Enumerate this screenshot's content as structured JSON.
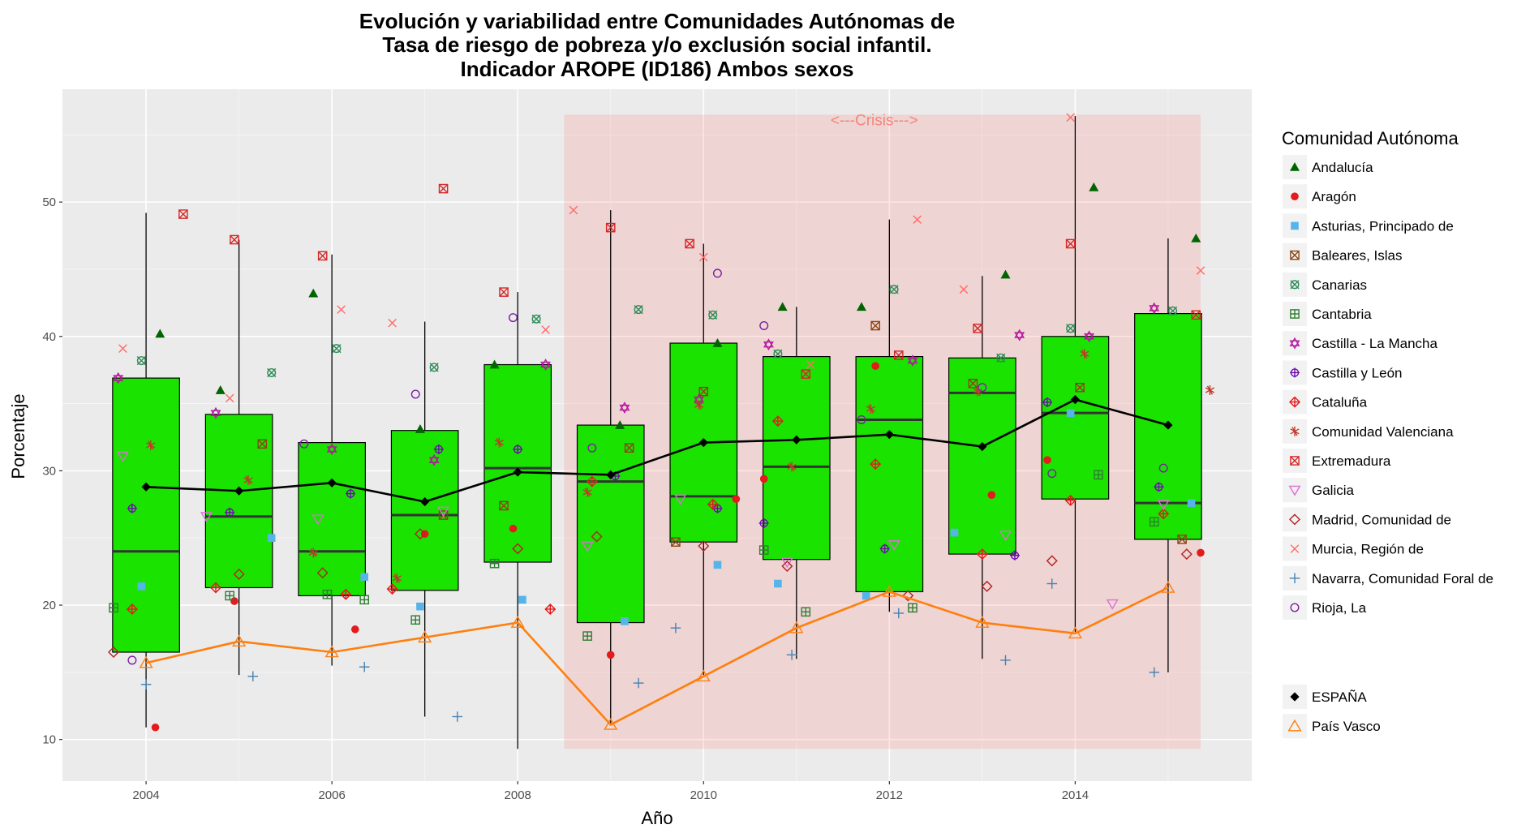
{
  "chart_data": {
    "type": "boxplot",
    "title_lines": [
      "Evolución y variabilidad entre Comunidades Autónomas de",
      "Tasa de riesgo de pobreza y/o exclusión social infantil.",
      "Indicador AROPE (ID186) Ambos sexos"
    ],
    "xlabel": "Año",
    "ylabel": "Porcentaje",
    "xlim": [
      2003.1,
      2015.9
    ],
    "ylim": [
      6.9,
      58.4
    ],
    "x_ticks": [
      2004,
      2006,
      2008,
      2010,
      2012,
      2014
    ],
    "y_ticks": [
      10,
      20,
      30,
      40,
      50
    ],
    "grid": true,
    "panel_background": "#ebebeb",
    "box_fill": "#1ae300",
    "crisis": {
      "label": "<---Crisis--->",
      "x_range": [
        2008.5,
        2015.35
      ],
      "y_range": [
        9.3,
        56.5
      ],
      "color": "#f8766d"
    },
    "legend_title": "Comunidad Autónoma",
    "legend_position": "right",
    "boxes": [
      {
        "year": 2004,
        "q1": 16.5,
        "median": 24.0,
        "q3": 36.9,
        "low": 10.9,
        "high": 49.2
      },
      {
        "year": 2005,
        "q1": 21.3,
        "median": 26.6,
        "q3": 34.2,
        "low": 14.8,
        "high": 47.2
      },
      {
        "year": 2006,
        "q1": 20.7,
        "median": 24.0,
        "q3": 32.1,
        "low": 15.5,
        "high": 46.1
      },
      {
        "year": 2007,
        "q1": 21.1,
        "median": 26.7,
        "q3": 33.0,
        "low": 11.7,
        "high": 41.1
      },
      {
        "year": 2008,
        "q1": 23.2,
        "median": 30.2,
        "q3": 37.9,
        "low": 9.3,
        "high": 43.3
      },
      {
        "year": 2009,
        "q1": 18.7,
        "median": 29.2,
        "q3": 33.4,
        "low": 11.1,
        "high": 49.4
      },
      {
        "year": 2010,
        "q1": 24.7,
        "median": 28.1,
        "q3": 39.5,
        "low": 14.8,
        "high": 46.9
      },
      {
        "year": 2011,
        "q1": 23.4,
        "median": 30.3,
        "q3": 38.5,
        "low": 16.0,
        "high": 42.2
      },
      {
        "year": 2012,
        "q1": 21.0,
        "median": 33.8,
        "q3": 38.5,
        "low": 19.5,
        "high": 48.7
      },
      {
        "year": 2013,
        "q1": 23.8,
        "median": 35.8,
        "q3": 38.4,
        "low": 16.0,
        "high": 44.5
      },
      {
        "year": 2014,
        "q1": 27.9,
        "median": 34.3,
        "q3": 40.0,
        "low": 18.0,
        "high": 56.4
      },
      {
        "year": 2015,
        "q1": 24.9,
        "median": 27.6,
        "q3": 41.7,
        "low": 15.0,
        "high": 47.3
      }
    ],
    "lines": [
      {
        "name": "ESPAÑA",
        "color": "#000000",
        "shape": "diamond",
        "x": [
          2004,
          2005,
          2006,
          2007,
          2008,
          2009,
          2010,
          2011,
          2012,
          2013,
          2014,
          2015
        ],
        "y": [
          28.8,
          28.5,
          29.1,
          27.7,
          29.9,
          29.7,
          32.1,
          32.3,
          32.7,
          31.8,
          35.3,
          33.4
        ]
      },
      {
        "name": "País Vasco",
        "color": "#ff7f0e",
        "shape": "triangle-open",
        "x": [
          2004,
          2005,
          2006,
          2007,
          2008,
          2009,
          2010,
          2011,
          2012,
          2013,
          2014,
          2015
        ],
        "y": [
          15.7,
          17.3,
          16.5,
          17.6,
          18.7,
          11.1,
          14.7,
          18.3,
          21.0,
          18.7,
          17.9,
          21.3
        ]
      }
    ],
    "series": [
      {
        "name": "Andalucía",
        "color": "#006400",
        "shape": "triangle",
        "x": [
          2004.15,
          2004.8,
          2005.8,
          2006.95,
          2007.75,
          2009.1,
          2010.15,
          2010.85,
          2011.7,
          2013.25,
          2014.2,
          2015.3
        ],
        "y": [
          40.2,
          36.0,
          43.2,
          33.1,
          37.9,
          33.4,
          39.5,
          42.2,
          42.2,
          44.6,
          51.1,
          47.3
        ]
      },
      {
        "name": "Aragón",
        "color": "#e41a1c",
        "shape": "circle",
        "x": [
          2004.1,
          2004.95,
          2006.25,
          2007.0,
          2007.95,
          2009.0,
          2010.35,
          2010.65,
          2011.85,
          2013.1,
          2013.7,
          2015.35
        ],
        "y": [
          10.9,
          20.3,
          18.2,
          25.3,
          25.7,
          16.3,
          27.9,
          29.4,
          37.8,
          28.2,
          30.8,
          23.9
        ]
      },
      {
        "name": "Asturias, Principado de",
        "color": "#56b4e9",
        "shape": "square",
        "x": [
          2003.95,
          2005.35,
          2006.35,
          2006.95,
          2008.05,
          2009.15,
          2010.15,
          2010.8,
          2011.75,
          2012.7,
          2013.95,
          2015.25
        ],
        "y": [
          21.4,
          25.0,
          22.1,
          19.9,
          20.4,
          18.8,
          23.0,
          21.6,
          20.7,
          25.4,
          34.3,
          27.6
        ]
      },
      {
        "name": "Baleares, Islas",
        "color": "#8b4513",
        "shape": "square-x",
        "x": [
          2005.25,
          2007.2,
          2007.85,
          2009.2,
          2009.7,
          2010.0,
          2011.85,
          2012.9,
          2014.05,
          2015.15
        ],
        "y": [
          32.0,
          26.7,
          27.4,
          31.7,
          24.7,
          35.9,
          40.8,
          36.5,
          36.2,
          24.9
        ]
      },
      {
        "name": "Canarias",
        "color": "#2e8b57",
        "shape": "circle-x",
        "x": [
          2003.95,
          2005.35,
          2006.05,
          2007.1,
          2008.2,
          2009.3,
          2010.1,
          2010.8,
          2012.05,
          2013.2,
          2013.95,
          2015.05
        ],
        "y": [
          38.2,
          37.3,
          39.1,
          37.7,
          41.3,
          42.0,
          41.6,
          38.7,
          43.5,
          38.4,
          40.6,
          41.9
        ]
      },
      {
        "name": "Cantabria",
        "color": "#2e7d32",
        "shape": "square-plus",
        "x": [
          2003.65,
          2004.9,
          2005.95,
          2006.35,
          2006.9,
          2007.75,
          2008.75,
          2010.65,
          2011.1,
          2012.25,
          2014.25,
          2014.85
        ],
        "y": [
          19.8,
          20.7,
          20.8,
          20.4,
          18.9,
          23.1,
          17.7,
          24.1,
          19.5,
          19.8,
          29.7,
          26.2
        ]
      },
      {
        "name": "Castilla - La Mancha",
        "color": "#b5179e",
        "shape": "star-of-david",
        "x": [
          2003.7,
          2004.75,
          2006.0,
          2007.1,
          2008.3,
          2009.15,
          2009.95,
          2010.7,
          2012.25,
          2013.4,
          2014.15,
          2014.85
        ],
        "y": [
          36.9,
          34.3,
          31.6,
          30.8,
          37.9,
          34.7,
          35.3,
          39.4,
          38.2,
          40.1,
          40.0,
          42.1
        ]
      },
      {
        "name": "Castilla y León",
        "color": "#6a0dad",
        "shape": "circle-plus",
        "x": [
          2003.85,
          2004.9,
          2006.2,
          2007.15,
          2008.0,
          2009.05,
          2010.15,
          2010.65,
          2011.95,
          2013.35,
          2013.7,
          2014.9
        ],
        "y": [
          27.2,
          26.9,
          28.3,
          31.6,
          31.6,
          29.6,
          27.2,
          26.1,
          24.2,
          23.7,
          35.1,
          28.8
        ]
      },
      {
        "name": "Cataluña",
        "color": "#e41a1c",
        "shape": "diamond-plus",
        "x": [
          2003.85,
          2004.75,
          2006.15,
          2006.65,
          2008.35,
          2008.8,
          2010.1,
          2010.8,
          2011.85,
          2013.0,
          2013.95,
          2014.95
        ],
        "y": [
          19.7,
          21.3,
          20.8,
          21.2,
          19.7,
          29.2,
          27.5,
          33.7,
          30.5,
          23.8,
          27.8,
          26.8
        ]
      },
      {
        "name": "Comunidad Valenciana",
        "color": "#c0392b",
        "shape": "asterisk",
        "x": [
          2004.05,
          2005.1,
          2005.8,
          2006.7,
          2007.8,
          2008.75,
          2009.95,
          2010.95,
          2011.8,
          2012.95,
          2014.1,
          2015.45
        ],
        "y": [
          31.9,
          29.3,
          23.9,
          22.0,
          32.1,
          28.4,
          34.9,
          30.3,
          34.6,
          35.9,
          38.7,
          36.0
        ]
      },
      {
        "name": "Extremadura",
        "color": "#d62728",
        "shape": "square-x",
        "x": [
          2004.4,
          2004.95,
          2005.9,
          2007.2,
          2007.85,
          2009.0,
          2009.85,
          2011.1,
          2012.1,
          2012.95,
          2013.95,
          2015.3
        ],
        "y": [
          49.1,
          47.2,
          46.0,
          51.0,
          43.3,
          48.1,
          46.9,
          37.2,
          38.6,
          40.6,
          46.9,
          41.6
        ]
      },
      {
        "name": "Galicia",
        "color": "#da70d6",
        "shape": "triangle-down-open",
        "x": [
          2003.75,
          2004.65,
          2005.85,
          2007.2,
          2008.75,
          2009.75,
          2010.9,
          2012.05,
          2013.25,
          2014.4,
          2014.95
        ],
        "y": [
          31.1,
          26.6,
          26.4,
          27.0,
          24.4,
          27.9,
          23.2,
          24.5,
          25.2,
          20.1,
          27.5
        ]
      },
      {
        "name": "Madrid, Comunidad de",
        "color": "#b22222",
        "shape": "diamond-open",
        "x": [
          2003.65,
          2005.0,
          2005.9,
          2006.95,
          2008.0,
          2008.85,
          2010.0,
          2010.9,
          2012.2,
          2013.05,
          2013.75,
          2015.2
        ],
        "y": [
          16.5,
          22.3,
          22.4,
          25.3,
          24.2,
          25.1,
          24.4,
          22.9,
          20.7,
          21.4,
          23.3,
          23.8
        ]
      },
      {
        "name": "Murcia, Región de",
        "color": "#ff6b6b",
        "shape": "cross-x",
        "x": [
          2003.75,
          2004.9,
          2006.1,
          2006.65,
          2008.3,
          2008.6,
          2010.0,
          2011.15,
          2012.3,
          2012.8,
          2013.95,
          2015.35
        ],
        "y": [
          39.1,
          35.4,
          42.0,
          41.0,
          40.5,
          49.4,
          45.9,
          37.9,
          48.7,
          43.5,
          56.3,
          44.9
        ]
      },
      {
        "name": "Navarra, Comunidad Foral de",
        "color": "#4682b4",
        "shape": "plus",
        "x": [
          2004.0,
          2005.15,
          2006.35,
          2007.35,
          2009.3,
          2009.7,
          2010.95,
          2012.1,
          2013.25,
          2013.75,
          2014.85
        ],
        "y": [
          14.1,
          14.7,
          15.4,
          11.7,
          14.2,
          18.3,
          16.3,
          19.4,
          15.9,
          21.6,
          15.0
        ]
      },
      {
        "name": "Rioja, La",
        "color": "#7b1fa2",
        "shape": "circle-open",
        "x": [
          2003.85,
          2005.7,
          2006.9,
          2007.95,
          2008.8,
          2010.15,
          2010.65,
          2011.7,
          2013.0,
          2013.75,
          2014.95
        ],
        "y": [
          15.9,
          32.0,
          35.7,
          41.4,
          31.7,
          44.7,
          40.8,
          33.8,
          36.2,
          29.8,
          30.2
        ]
      }
    ]
  }
}
